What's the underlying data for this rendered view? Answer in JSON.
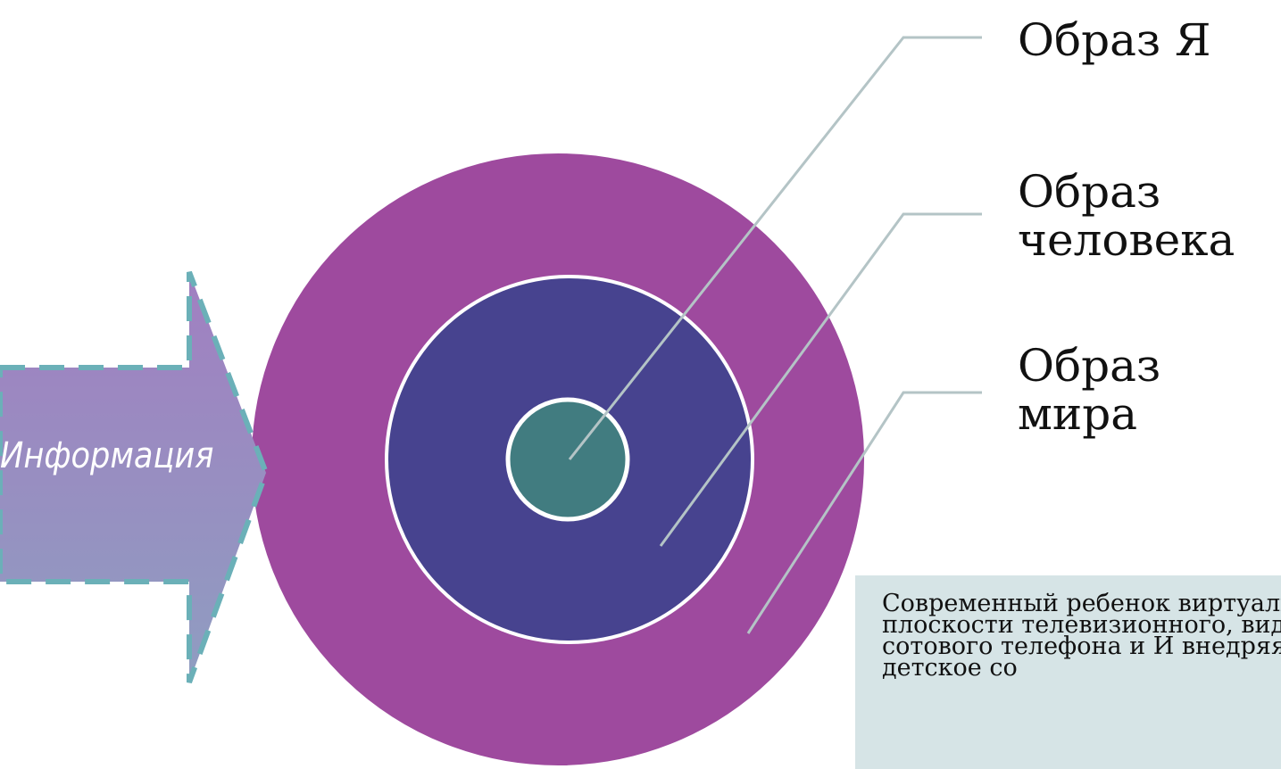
{
  "labels": {
    "self_image": "Образ Я",
    "human_image": "Образ человека",
    "world_image": "Образ мира"
  },
  "arrow": {
    "text": "Информация"
  },
  "note": {
    "text": "Современный ребенок виртуальной плоскости телевизионного, видео сотового телефона и И внедряясь в детское со"
  },
  "colors": {
    "outer_circle": "#9e4a9e",
    "middle_circle": "#47438f",
    "inner_circle": "#417c80",
    "arrow_fill": "#9088bf",
    "arrow_border": "#6bb0b8",
    "leader_lines": "#b4c4c6",
    "note_background": "#d6e4e6"
  }
}
